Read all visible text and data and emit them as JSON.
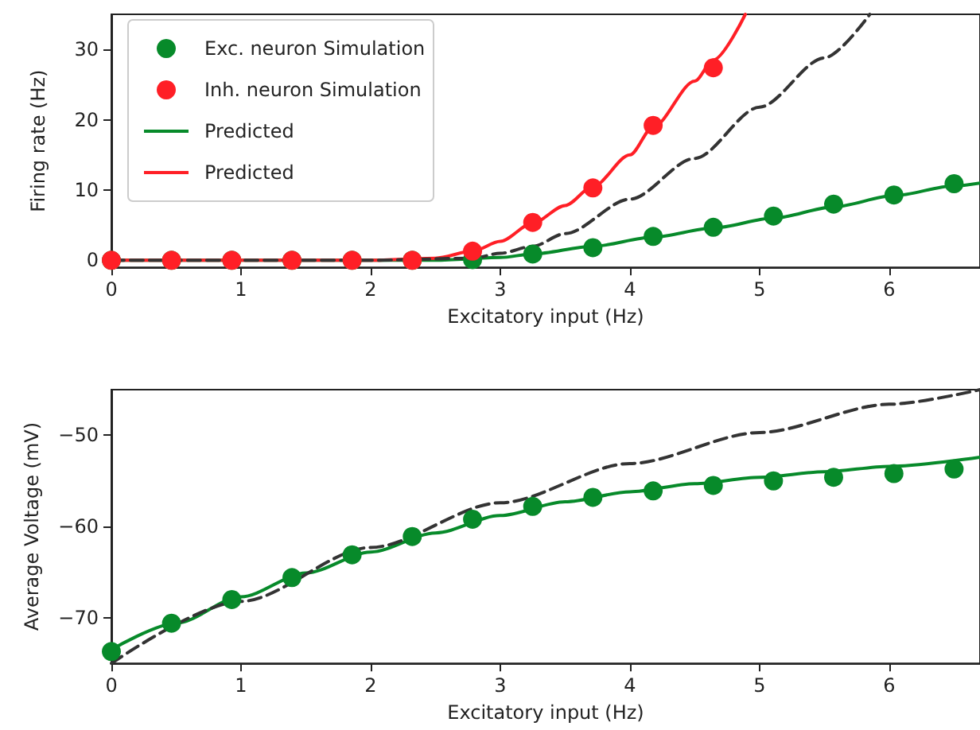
{
  "chart_data": [
    {
      "type": "scatter",
      "ylabel": "Firing rate (Hz)",
      "xlabel": "Excitatory input (Hz)",
      "xlim": [
        0,
        6.7
      ],
      "xticks": [
        0,
        1,
        2,
        3,
        4,
        5,
        6
      ],
      "ylim": [
        -1,
        35
      ],
      "yticks": [
        0,
        10,
        20,
        30
      ],
      "grid": false,
      "legend": "top left",
      "series": [
        {
          "name": "Exc. neuron Simulation",
          "type": "scatter",
          "marker": "circle",
          "color": "#078a2a",
          "x": [
            0,
            0.464,
            0.929,
            1.393,
            1.857,
            2.321,
            2.786,
            3.25,
            3.714,
            4.179,
            4.643,
            5.107,
            5.571,
            6.036,
            6.5
          ],
          "values": [
            0,
            0,
            0,
            0,
            0,
            0,
            0.1,
            0.9,
            1.8,
            3.4,
            4.7,
            6.3,
            8.0,
            9.3,
            10.9
          ]
        },
        {
          "name": "Inh. neuron Simulation",
          "type": "scatter",
          "marker": "circle",
          "color": "#ff1f26",
          "x": [
            0,
            0.464,
            0.929,
            1.393,
            1.857,
            2.321,
            2.786,
            3.25,
            3.714,
            4.179,
            4.643
          ],
          "values": [
            0,
            0,
            0,
            0,
            0,
            0,
            1.3,
            5.4,
            10.3,
            19.2,
            27.4
          ]
        },
        {
          "name": "Predicted",
          "type": "line",
          "marker": "none",
          "line_style": "solid",
          "color": "#078a2a",
          "x": [
            0,
            2.0,
            2.5,
            3.0,
            3.25,
            3.714,
            4.179,
            4.643,
            5.107,
            5.571,
            6.036,
            6.5,
            6.7
          ],
          "values": [
            0,
            0,
            0,
            0.4,
            0.9,
            2.0,
            3.3,
            4.6,
            6.0,
            7.6,
            9.2,
            10.6,
            11.0
          ]
        },
        {
          "name": "Predicted",
          "type": "line",
          "marker": "none",
          "line_style": "solid",
          "color": "#ff1f26",
          "x": [
            0,
            2.0,
            2.5,
            2.786,
            3.0,
            3.25,
            3.5,
            3.714,
            4.0,
            4.179,
            4.5,
            4.643,
            4.89
          ],
          "values": [
            0,
            0,
            0.3,
            1.3,
            2.7,
            5.3,
            7.8,
            10.5,
            15,
            19,
            25.5,
            28.5,
            35
          ]
        },
        {
          "type": "line",
          "marker": "none",
          "line_style": "dashed",
          "color": "#333333",
          "x": [
            0,
            2.0,
            2.786,
            3.0,
            3.25,
            3.5,
            4.0,
            4.5,
            5.0,
            5.5,
            5.85
          ],
          "values": [
            0,
            0,
            0.3,
            1,
            2,
            3.8,
            8.7,
            14.5,
            21.8,
            28.8,
            35
          ]
        }
      ]
    },
    {
      "type": "scatter",
      "ylabel": "Average Voltage (mV)",
      "xlabel": "Excitatory input (Hz)",
      "xlim": [
        0,
        6.7
      ],
      "xticks": [
        0,
        1,
        2,
        3,
        4,
        5,
        6
      ],
      "ylim": [
        -75,
        -45
      ],
      "yticks": [
        {
          "value": -70,
          "label": "−70"
        },
        {
          "value": -60,
          "label": "−60"
        },
        {
          "value": -50,
          "label": "−50"
        }
      ],
      "grid": false,
      "series": [
        {
          "type": "scatter",
          "marker": "circle",
          "color": "#078a2a",
          "x": [
            0,
            0.464,
            0.929,
            1.393,
            1.857,
            2.321,
            2.786,
            3.25,
            3.714,
            4.179,
            4.643,
            5.107,
            5.571,
            6.036,
            6.5
          ],
          "values": [
            -73.7,
            -70.6,
            -68.0,
            -65.6,
            -63.1,
            -61.1,
            -59.2,
            -57.8,
            -56.8,
            -56.1,
            -55.5,
            -55.0,
            -54.6,
            -54.2,
            -53.7
          ]
        },
        {
          "type": "line",
          "marker": "none",
          "line_style": "solid",
          "color": "#078a2a",
          "x": [
            0,
            0.5,
            1,
            1.5,
            2,
            2.5,
            3,
            3.5,
            4,
            4.5,
            5,
            5.5,
            6,
            6.7
          ],
          "values": [
            -73.5,
            -70.6,
            -67.7,
            -65.1,
            -62.8,
            -60.7,
            -58.8,
            -57.3,
            -56.2,
            -55.3,
            -54.6,
            -54.0,
            -53.4,
            -52.4
          ]
        },
        {
          "type": "line",
          "marker": "none",
          "line_style": "dashed",
          "color": "#333333",
          "x": [
            0,
            1,
            2,
            3,
            4,
            5,
            6,
            6.7
          ],
          "values": [
            -75,
            -68.2,
            -62.3,
            -57.4,
            -53.1,
            -49.7,
            -46.6,
            -45
          ]
        }
      ]
    }
  ]
}
